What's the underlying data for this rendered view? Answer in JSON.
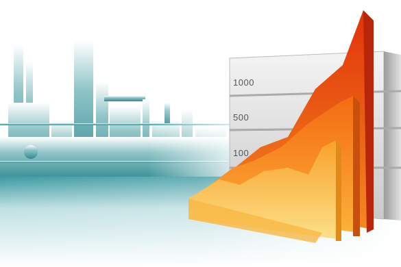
{
  "board": {
    "labels": [
      "1000",
      "500",
      "100"
    ]
  }
}
